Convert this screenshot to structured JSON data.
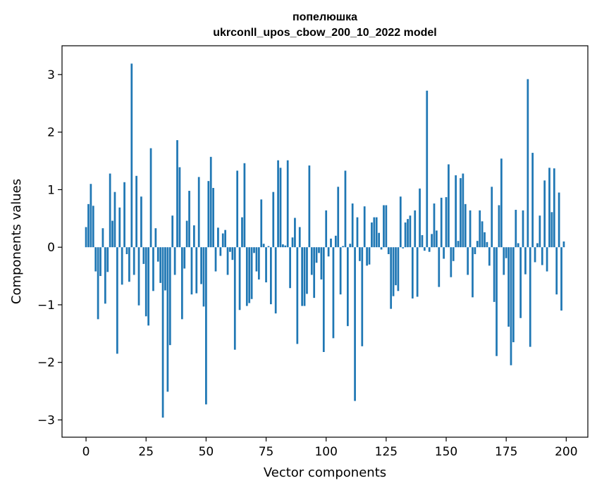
{
  "chart_data": {
    "type": "bar",
    "title_line1": "попелюшка",
    "title_line2": "ukrconll_upos_cbow_200_10_2022 model",
    "xlabel": "Vector components",
    "ylabel": "Components values",
    "xlim": [
      -10,
      209
    ],
    "ylim": [
      -3.3,
      3.5
    ],
    "xticks": [
      0,
      25,
      50,
      75,
      100,
      125,
      150,
      175,
      200
    ],
    "yticks": [
      -3,
      -2,
      -1,
      0,
      1,
      2,
      3
    ],
    "ytick_labels": [
      "−3",
      "−2",
      "−1",
      "0",
      "1",
      "2",
      "3"
    ],
    "grid": false,
    "values": [
      0.35,
      0.75,
      1.1,
      0.72,
      -0.42,
      -1.25,
      -0.5,
      0.33,
      -0.98,
      -0.43,
      1.28,
      0.46,
      0.96,
      -1.85,
      0.69,
      -0.65,
      1.13,
      -0.12,
      -0.6,
      3.19,
      -0.48,
      1.24,
      -1.01,
      0.88,
      -0.29,
      -1.2,
      -1.36,
      1.72,
      -0.76,
      0.33,
      -0.25,
      -0.62,
      -2.96,
      -0.75,
      -2.51,
      -1.7,
      0.55,
      -0.48,
      1.86,
      1.39,
      -1.25,
      -0.37,
      0.46,
      0.98,
      -0.82,
      0.38,
      -0.8,
      1.22,
      -0.64,
      -1.03,
      -2.73,
      1.15,
      1.57,
      1.03,
      -0.42,
      0.34,
      -0.15,
      0.24,
      0.3,
      -0.48,
      -0.08,
      -0.22,
      -1.78,
      1.33,
      -1.09,
      0.52,
      1.46,
      -1.02,
      -0.97,
      -0.9,
      -0.1,
      -0.42,
      -0.56,
      0.83,
      0.06,
      -0.61,
      0.02,
      -0.99,
      0.96,
      -1.15,
      1.51,
      1.38,
      0.05,
      0.03,
      1.51,
      -0.71,
      0.17,
      0.51,
      -1.68,
      0.35,
      -1.02,
      -1.02,
      -0.81,
      1.42,
      -0.48,
      -0.88,
      -0.27,
      -0.1,
      -0.56,
      -1.82,
      0.64,
      -0.16,
      0.15,
      -1.58,
      0.2,
      1.05,
      -0.82,
      0.02,
      1.33,
      -1.37,
      0.06,
      0.76,
      -2.67,
      0.52,
      -0.24,
      -1.72,
      0.71,
      -0.32,
      -0.3,
      0.43,
      0.52,
      0.52,
      0.25,
      -0.04,
      0.73,
      0.73,
      -0.12,
      -1.07,
      -0.85,
      -0.66,
      -0.76,
      0.88,
      -0.02,
      0.43,
      0.49,
      0.55,
      -0.89,
      0.64,
      -0.86,
      1.02,
      0.21,
      -0.06,
      2.72,
      -0.08,
      0.23,
      0.76,
      0.29,
      -0.69,
      0.86,
      -0.2,
      0.87,
      1.44,
      -0.52,
      -0.24,
      1.25,
      0.11,
      1.2,
      1.28,
      0.75,
      -0.48,
      0.64,
      -0.87,
      -0.12,
      0.11,
      0.64,
      0.45,
      0.26,
      0.09,
      -0.32,
      1.05,
      -0.95,
      -1.89,
      0.73,
      1.54,
      -0.48,
      -0.19,
      -1.38,
      -2.05,
      -1.65,
      0.65,
      0.07,
      -1.23,
      0.64,
      -0.47,
      2.92,
      -1.73,
      1.64,
      -0.26,
      0.07,
      0.55,
      -0.31,
      1.16,
      -0.42,
      1.38,
      0.61,
      1.37,
      -0.82,
      0.95,
      -1.1,
      0.1
    ]
  }
}
